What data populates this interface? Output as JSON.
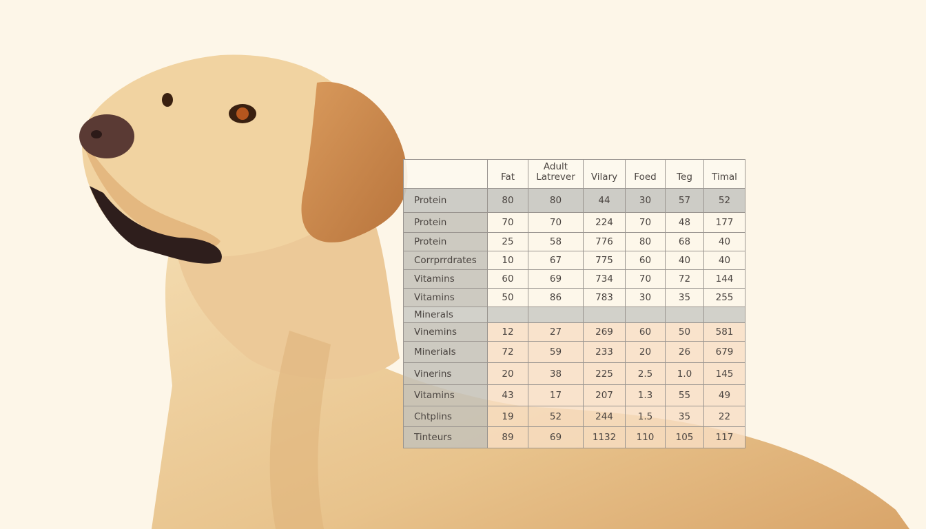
{
  "table": {
    "headers": [
      "",
      "Fat",
      "Adult Latrever",
      "Vilary",
      "Foed",
      "Teg",
      "Timal"
    ],
    "rows": [
      {
        "label": "Protein",
        "values": [
          "80",
          "80",
          "44",
          "30",
          "57",
          "52"
        ]
      },
      {
        "label": "Protein",
        "values": [
          "70",
          "70",
          "224",
          "70",
          "48",
          "177"
        ]
      },
      {
        "label": "Protein",
        "values": [
          "25",
          "58",
          "776",
          "80",
          "68",
          "40"
        ]
      },
      {
        "label": "Corrprrdrates",
        "values": [
          "10",
          "67",
          "775",
          "60",
          "40",
          "40"
        ]
      },
      {
        "label": "Vitamins",
        "values": [
          "60",
          "69",
          "734",
          "70",
          "72",
          "144"
        ]
      },
      {
        "label": "Vitamins",
        "values": [
          "50",
          "86",
          "783",
          "30",
          "35",
          "255"
        ]
      },
      {
        "label": "Minerals",
        "values": [
          "",
          "",
          "",
          "",
          "",
          ""
        ]
      },
      {
        "label": "Vinemins",
        "values": [
          "12",
          "27",
          "269",
          "60",
          "50",
          "581"
        ]
      },
      {
        "label": "Minerials",
        "values": [
          "72",
          "59",
          "233",
          "20",
          "26",
          "679"
        ]
      },
      {
        "label": "Vinerins",
        "values": [
          "20",
          "38",
          "225",
          "2.5",
          "1.0",
          "145"
        ]
      },
      {
        "label": "Vitamins",
        "values": [
          "43",
          "17",
          "207",
          "1.3",
          "55",
          "49"
        ]
      },
      {
        "label": "Chtplins",
        "values": [
          "19",
          "52",
          "244",
          "1.5",
          "35",
          "22"
        ]
      },
      {
        "label": "Tinteurs",
        "values": [
          "89",
          "69",
          "1132",
          "110",
          "105",
          "117"
        ]
      }
    ]
  },
  "colors": {
    "background": "#fdf6e8",
    "fur": "#e9c38e",
    "fur_dark": "#c98a4e",
    "nose": "#5a3a34"
  }
}
